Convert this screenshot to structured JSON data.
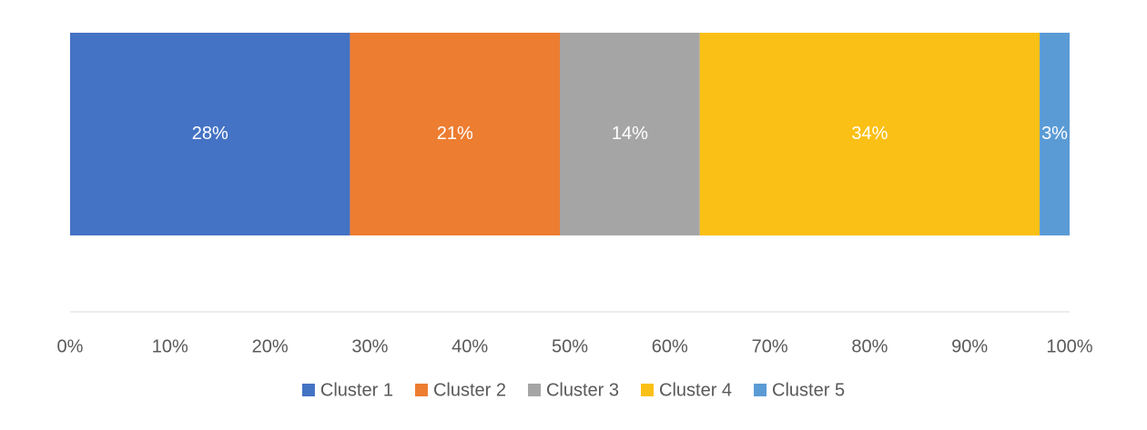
{
  "chart_data": {
    "type": "stacked-bar-horizontal",
    "categories": [
      null
    ],
    "series": [
      {
        "name": "Cluster 1",
        "color": "#4472c4",
        "values": [
          28
        ],
        "value_labels": [
          "28%"
        ]
      },
      {
        "name": "Cluster 2",
        "color": "#ed7d31",
        "values": [
          21
        ],
        "value_labels": [
          "21%"
        ]
      },
      {
        "name": "Cluster 3",
        "color": "#a5a5a5",
        "values": [
          14
        ],
        "value_labels": [
          "14%"
        ]
      },
      {
        "name": "Cluster 4",
        "color": "#fbc015",
        "values": [
          34
        ],
        "value_labels": [
          "34%"
        ]
      },
      {
        "name": "Cluster 5",
        "color": "#5b9bd5",
        "values": [
          3
        ],
        "value_labels": [
          "3%"
        ]
      }
    ],
    "xlim": [
      0,
      100
    ],
    "xticks": [
      {
        "value": 0,
        "label": "0%"
      },
      {
        "value": 10,
        "label": "10%"
      },
      {
        "value": 20,
        "label": "20%"
      },
      {
        "value": 30,
        "label": "30%"
      },
      {
        "value": 40,
        "label": "40%"
      },
      {
        "value": 50,
        "label": "50%"
      },
      {
        "value": 60,
        "label": "60%"
      },
      {
        "value": 70,
        "label": "70%"
      },
      {
        "value": 80,
        "label": "80%"
      },
      {
        "value": 90,
        "label": "90%"
      },
      {
        "value": 100,
        "label": "100%"
      }
    ],
    "legend": "bottom"
  }
}
